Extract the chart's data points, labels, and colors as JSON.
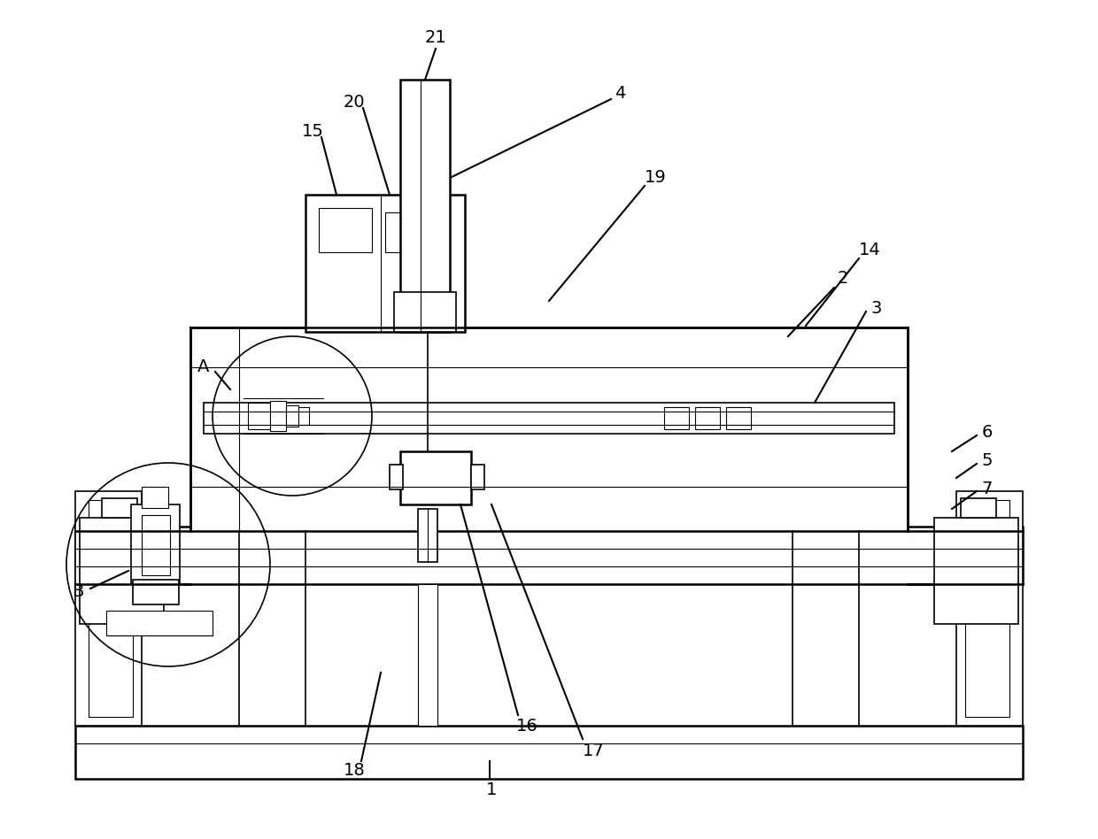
{
  "bg_color": "#ffffff",
  "line_color": "#000000",
  "lw_main": 1.8,
  "lw_med": 1.2,
  "lw_thin": 0.8,
  "fig_width": 12.4,
  "fig_height": 9.48
}
